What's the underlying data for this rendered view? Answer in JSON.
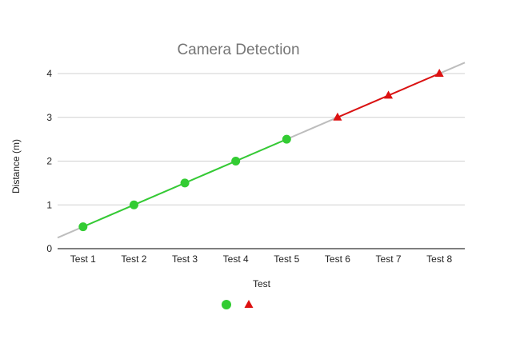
{
  "chart_data": {
    "type": "line",
    "title": "Camera Detection",
    "xlabel": "Test",
    "ylabel": "Distance (m)",
    "categories": [
      "Test 1",
      "Test 2",
      "Test 3",
      "Test 4",
      "Test 5",
      "Test 6",
      "Test 7",
      "Test 8"
    ],
    "ylim": [
      0,
      4
    ],
    "yticks": [
      0,
      1,
      2,
      3,
      4
    ],
    "grid": true,
    "legend_position": "bottom",
    "series": [
      {
        "values": [
          0.5,
          1.0,
          1.5,
          2.0,
          2.5,
          null,
          null,
          null
        ],
        "color": "#33cc33",
        "marker": "circle"
      },
      {
        "values": [
          null,
          null,
          null,
          null,
          null,
          3.0,
          3.5,
          4.0
        ],
        "color": "#dd1111",
        "marker": "triangle"
      }
    ],
    "trendline": {
      "slope": 0.5,
      "intercept": 0,
      "color": "#bdbdbd"
    }
  }
}
